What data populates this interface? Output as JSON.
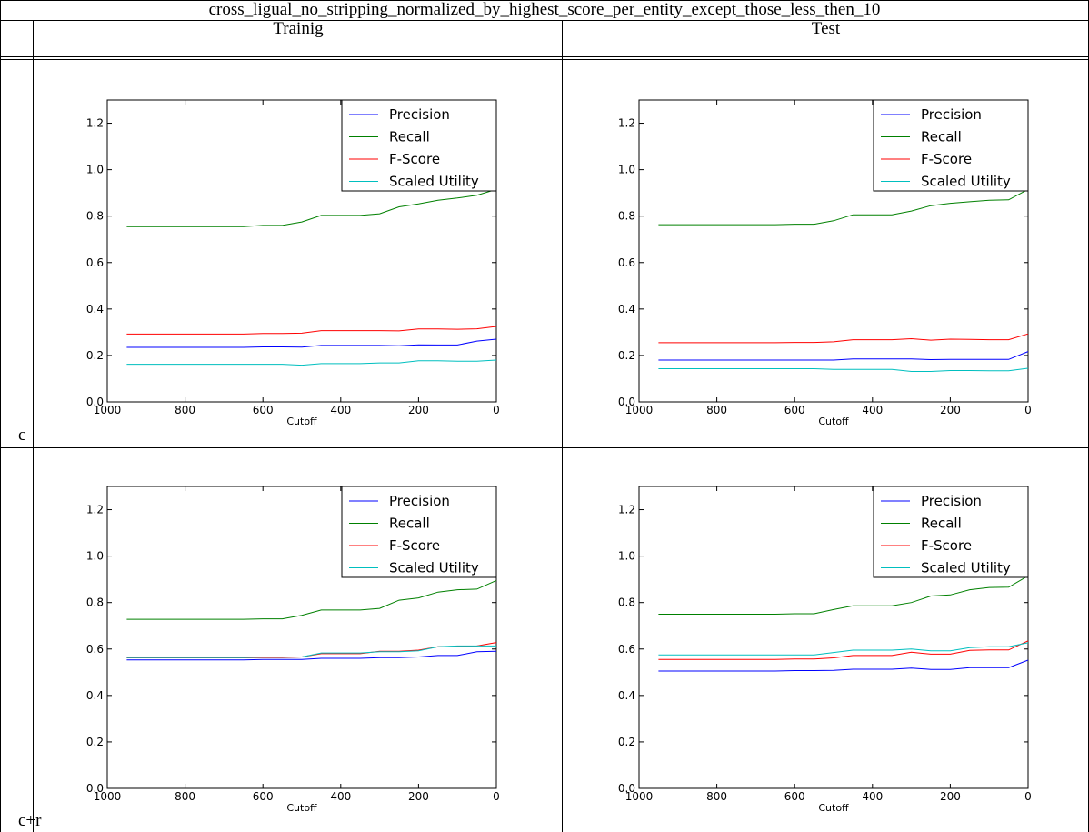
{
  "page_title": "cross_ligual_no_stripping_normalized_by_highest_score_per_entity_except_those_less_then_10",
  "columns": [
    "Trainig",
    "Test"
  ],
  "rows": [
    "c",
    "c+r"
  ],
  "colors": {
    "Precision": "#0000ff",
    "Recall": "#008000",
    "F-Score": "#ff0000",
    "Scaled Utility": "#00bfbf"
  },
  "chart_data": [
    {
      "type": "line",
      "title": "",
      "xlabel": "Cutoff",
      "ylabel": "",
      "xlim": [
        1000,
        0
      ],
      "ylim": [
        0.0,
        1.3
      ],
      "xticks": [
        1000,
        800,
        600,
        400,
        200,
        0
      ],
      "yticks": [
        0.0,
        0.2,
        0.4,
        0.6,
        0.8,
        1.0,
        1.2
      ],
      "legend_position": "top-right",
      "grid": false,
      "x": [
        950,
        900,
        850,
        800,
        750,
        700,
        650,
        600,
        550,
        500,
        450,
        400,
        350,
        300,
        250,
        200,
        150,
        100,
        50,
        0
      ],
      "series": [
        {
          "name": "Precision",
          "values": [
            0.235,
            0.235,
            0.235,
            0.235,
            0.235,
            0.235,
            0.235,
            0.237,
            0.237,
            0.236,
            0.243,
            0.243,
            0.243,
            0.243,
            0.242,
            0.246,
            0.245,
            0.245,
            0.262,
            0.27
          ]
        },
        {
          "name": "Recall",
          "values": [
            0.755,
            0.755,
            0.755,
            0.755,
            0.755,
            0.755,
            0.755,
            0.76,
            0.76,
            0.775,
            0.803,
            0.803,
            0.803,
            0.81,
            0.84,
            0.853,
            0.868,
            0.878,
            0.89,
            0.915
          ]
        },
        {
          "name": "F-Score",
          "values": [
            0.292,
            0.292,
            0.292,
            0.292,
            0.292,
            0.292,
            0.292,
            0.295,
            0.295,
            0.296,
            0.307,
            0.307,
            0.307,
            0.307,
            0.306,
            0.314,
            0.314,
            0.313,
            0.315,
            0.325
          ]
        },
        {
          "name": "Scaled Utility",
          "values": [
            0.162,
            0.162,
            0.162,
            0.162,
            0.162,
            0.162,
            0.162,
            0.162,
            0.162,
            0.158,
            0.165,
            0.165,
            0.165,
            0.168,
            0.168,
            0.177,
            0.177,
            0.175,
            0.175,
            0.18
          ]
        }
      ]
    },
    {
      "type": "line",
      "title": "",
      "xlabel": "Cutoff",
      "ylabel": "",
      "xlim": [
        1000,
        0
      ],
      "ylim": [
        0.0,
        1.3
      ],
      "xticks": [
        1000,
        800,
        600,
        400,
        200,
        0
      ],
      "yticks": [
        0.0,
        0.2,
        0.4,
        0.6,
        0.8,
        1.0,
        1.2
      ],
      "legend_position": "top-right",
      "grid": false,
      "x": [
        950,
        900,
        850,
        800,
        750,
        700,
        650,
        600,
        550,
        500,
        450,
        400,
        350,
        300,
        250,
        200,
        150,
        100,
        50,
        0
      ],
      "series": [
        {
          "name": "Precision",
          "values": [
            0.18,
            0.18,
            0.18,
            0.18,
            0.18,
            0.18,
            0.18,
            0.18,
            0.18,
            0.18,
            0.185,
            0.185,
            0.185,
            0.185,
            0.182,
            0.183,
            0.183,
            0.183,
            0.183,
            0.217
          ]
        },
        {
          "name": "Recall",
          "values": [
            0.763,
            0.763,
            0.763,
            0.763,
            0.763,
            0.763,
            0.763,
            0.765,
            0.765,
            0.78,
            0.806,
            0.806,
            0.806,
            0.822,
            0.845,
            0.855,
            0.862,
            0.868,
            0.87,
            0.915
          ]
        },
        {
          "name": "F-Score",
          "values": [
            0.255,
            0.255,
            0.255,
            0.255,
            0.255,
            0.255,
            0.255,
            0.256,
            0.256,
            0.259,
            0.268,
            0.268,
            0.268,
            0.272,
            0.266,
            0.27,
            0.269,
            0.268,
            0.268,
            0.293
          ]
        },
        {
          "name": "Scaled Utility",
          "values": [
            0.143,
            0.143,
            0.143,
            0.143,
            0.143,
            0.143,
            0.143,
            0.143,
            0.143,
            0.14,
            0.14,
            0.14,
            0.14,
            0.131,
            0.131,
            0.135,
            0.135,
            0.134,
            0.134,
            0.145
          ]
        }
      ]
    },
    {
      "type": "line",
      "title": "",
      "xlabel": "Cutoff",
      "ylabel": "",
      "xlim": [
        1000,
        0
      ],
      "ylim": [
        0.0,
        1.3
      ],
      "xticks": [
        1000,
        800,
        600,
        400,
        200,
        0
      ],
      "yticks": [
        0.0,
        0.2,
        0.4,
        0.6,
        0.8,
        1.0,
        1.2
      ],
      "legend_position": "top-right",
      "grid": false,
      "x": [
        950,
        900,
        850,
        800,
        750,
        700,
        650,
        600,
        550,
        500,
        450,
        400,
        350,
        300,
        250,
        200,
        150,
        100,
        50,
        0
      ],
      "series": [
        {
          "name": "Precision",
          "values": [
            0.553,
            0.553,
            0.553,
            0.553,
            0.553,
            0.553,
            0.553,
            0.555,
            0.555,
            0.555,
            0.56,
            0.56,
            0.56,
            0.563,
            0.563,
            0.566,
            0.572,
            0.572,
            0.588,
            0.59
          ]
        },
        {
          "name": "Recall",
          "values": [
            0.728,
            0.728,
            0.728,
            0.728,
            0.728,
            0.728,
            0.728,
            0.73,
            0.73,
            0.745,
            0.768,
            0.768,
            0.768,
            0.775,
            0.81,
            0.82,
            0.845,
            0.855,
            0.858,
            0.895
          ]
        },
        {
          "name": "F-Score",
          "values": [
            0.562,
            0.562,
            0.562,
            0.562,
            0.562,
            0.562,
            0.562,
            0.563,
            0.563,
            0.566,
            0.58,
            0.58,
            0.58,
            0.59,
            0.59,
            0.595,
            0.61,
            0.612,
            0.613,
            0.628
          ]
        },
        {
          "name": "Scaled Utility",
          "values": [
            0.563,
            0.563,
            0.563,
            0.563,
            0.563,
            0.563,
            0.563,
            0.565,
            0.565,
            0.566,
            0.583,
            0.583,
            0.583,
            0.588,
            0.588,
            0.592,
            0.61,
            0.613,
            0.613,
            0.613
          ]
        }
      ]
    },
    {
      "type": "line",
      "title": "",
      "xlabel": "Cutoff",
      "ylabel": "",
      "xlim": [
        1000,
        0
      ],
      "ylim": [
        0.0,
        1.3
      ],
      "xticks": [
        1000,
        800,
        600,
        400,
        200,
        0
      ],
      "yticks": [
        0.0,
        0.2,
        0.4,
        0.6,
        0.8,
        1.0,
        1.2
      ],
      "legend_position": "top-right",
      "grid": false,
      "x": [
        950,
        900,
        850,
        800,
        750,
        700,
        650,
        600,
        550,
        500,
        450,
        400,
        350,
        300,
        250,
        200,
        150,
        100,
        50,
        0
      ],
      "series": [
        {
          "name": "Precision",
          "values": [
            0.505,
            0.505,
            0.505,
            0.505,
            0.505,
            0.505,
            0.505,
            0.507,
            0.507,
            0.508,
            0.513,
            0.513,
            0.513,
            0.518,
            0.512,
            0.512,
            0.52,
            0.52,
            0.52,
            0.552
          ]
        },
        {
          "name": "Recall",
          "values": [
            0.75,
            0.75,
            0.75,
            0.75,
            0.75,
            0.75,
            0.75,
            0.752,
            0.752,
            0.77,
            0.786,
            0.786,
            0.786,
            0.8,
            0.828,
            0.833,
            0.855,
            0.865,
            0.866,
            0.915
          ]
        },
        {
          "name": "F-Score",
          "values": [
            0.555,
            0.555,
            0.555,
            0.555,
            0.555,
            0.555,
            0.555,
            0.557,
            0.557,
            0.562,
            0.572,
            0.572,
            0.572,
            0.586,
            0.578,
            0.578,
            0.594,
            0.596,
            0.596,
            0.635
          ]
        },
        {
          "name": "Scaled Utility",
          "values": [
            0.575,
            0.575,
            0.575,
            0.575,
            0.575,
            0.575,
            0.575,
            0.575,
            0.575,
            0.585,
            0.595,
            0.595,
            0.595,
            0.6,
            0.592,
            0.592,
            0.606,
            0.61,
            0.61,
            0.627
          ]
        }
      ]
    }
  ]
}
